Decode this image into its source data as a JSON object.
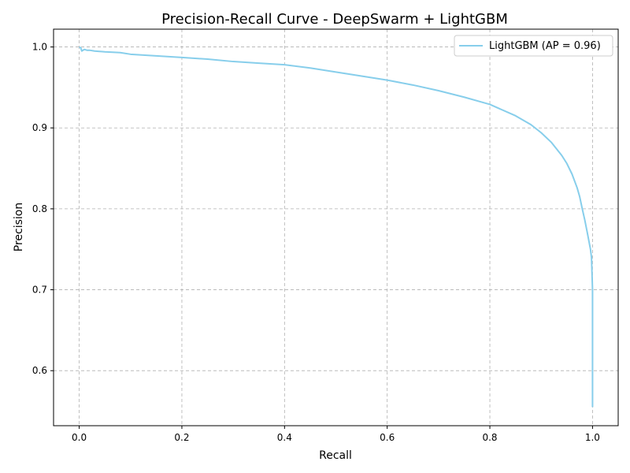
{
  "chart_data": {
    "type": "line",
    "title": "Precision-Recall Curve - DeepSwarm + LightGBM",
    "xlabel": "Recall",
    "ylabel": "Precision",
    "xlim": [
      -0.05,
      1.05
    ],
    "ylim": [
      0.532,
      1.022
    ],
    "xticks": [
      0.0,
      0.2,
      0.4,
      0.6,
      0.8,
      1.0
    ],
    "yticks": [
      0.6,
      0.7,
      0.8,
      0.9,
      1.0
    ],
    "xtick_labels": [
      "0.0",
      "0.2",
      "0.4",
      "0.6",
      "0.8",
      "1.0"
    ],
    "ytick_labels": [
      "0.6",
      "0.7",
      "0.8",
      "0.9",
      "1.0"
    ],
    "grid": true,
    "legend_position": "top-right",
    "series": [
      {
        "name": "LightGBM (AP = 0.96)",
        "color": "#87ceeb",
        "x": [
          0.0,
          0.003,
          0.005,
          0.01,
          0.015,
          0.02,
          0.03,
          0.05,
          0.08,
          0.1,
          0.15,
          0.2,
          0.25,
          0.3,
          0.35,
          0.4,
          0.45,
          0.5,
          0.55,
          0.6,
          0.65,
          0.7,
          0.75,
          0.8,
          0.85,
          0.88,
          0.9,
          0.92,
          0.94,
          0.95,
          0.96,
          0.97,
          0.975,
          0.98,
          0.985,
          0.99,
          0.993,
          0.996,
          0.998,
          0.999,
          1.0,
          1.0,
          1.0,
          1.0
        ],
        "y": [
          1.0,
          0.999,
          0.995,
          0.997,
          0.996,
          0.996,
          0.995,
          0.994,
          0.993,
          0.991,
          0.989,
          0.987,
          0.985,
          0.982,
          0.98,
          0.978,
          0.974,
          0.969,
          0.964,
          0.959,
          0.953,
          0.946,
          0.938,
          0.929,
          0.915,
          0.904,
          0.894,
          0.882,
          0.866,
          0.856,
          0.843,
          0.826,
          0.815,
          0.8,
          0.786,
          0.77,
          0.76,
          0.75,
          0.74,
          0.72,
          0.7,
          0.65,
          0.6,
          0.555
        ]
      }
    ]
  }
}
